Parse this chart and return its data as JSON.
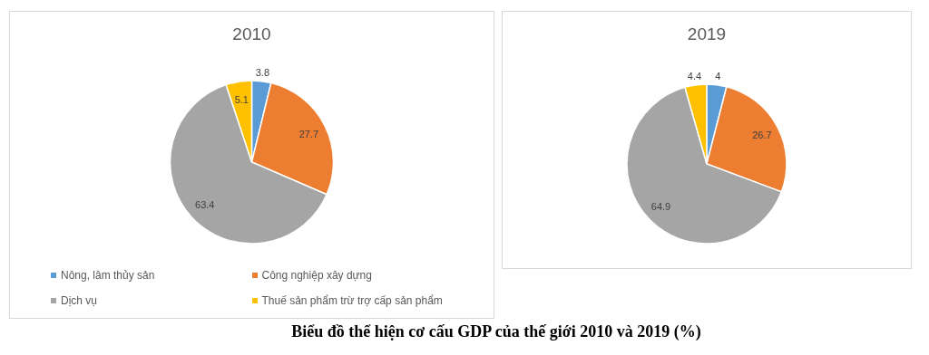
{
  "chart_data": [
    {
      "type": "pie",
      "title": "2010",
      "categories": [
        "Nông, lâm thủy sản",
        "Công nghiệp xây dựng",
        "Dịch vụ",
        "Thuế sản phẩm trừ trợ cấp sản phẩm"
      ],
      "values": [
        3.8,
        27.7,
        63.4,
        5.1
      ],
      "colors": [
        "#5b9bd5",
        "#ed7d31",
        "#a5a5a5",
        "#ffc000"
      ],
      "data_labels": true,
      "legend": "bottom",
      "annotations": [
        "Biểu đồ thể hiện cơ cấu GDP của thế giới 2010 và 2019 (%)"
      ]
    },
    {
      "type": "pie",
      "title": "2019",
      "categories": [
        null,
        null,
        null,
        null
      ],
      "values": [
        4,
        26.7,
        64.9,
        4.4
      ],
      "colors": [
        "#5b9bd5",
        "#ed7d31",
        "#a5a5a5",
        "#ffc000"
      ],
      "data_labels": true,
      "legend": false
    }
  ]
}
